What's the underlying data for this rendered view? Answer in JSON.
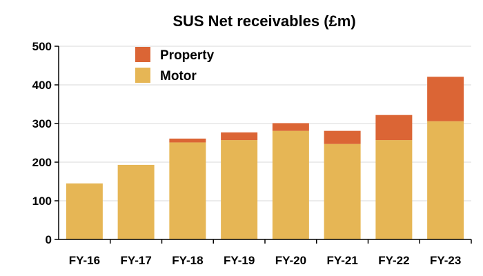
{
  "chart_data": {
    "type": "bar",
    "stacked": true,
    "title": "SUS Net receivables (£m)",
    "xlabel": "",
    "ylabel": "",
    "categories": [
      "FY-16",
      "FY-17",
      "FY-18",
      "FY-19",
      "FY-20",
      "FY-21",
      "FY-22",
      "FY-23"
    ],
    "series": [
      {
        "name": "Motor",
        "color": "#E6B655",
        "values": [
          145,
          193,
          251,
          257,
          281,
          247,
          257,
          306
        ]
      },
      {
        "name": "Property",
        "color": "#DB6535",
        "values": [
          0,
          0,
          10,
          20,
          20,
          34,
          65,
          115
        ]
      }
    ],
    "legend_order": [
      "Property",
      "Motor"
    ],
    "ylim": [
      0,
      500
    ],
    "yticks": [
      0,
      100,
      200,
      300,
      400,
      500
    ],
    "grid": true,
    "legend_position": "top-left"
  }
}
